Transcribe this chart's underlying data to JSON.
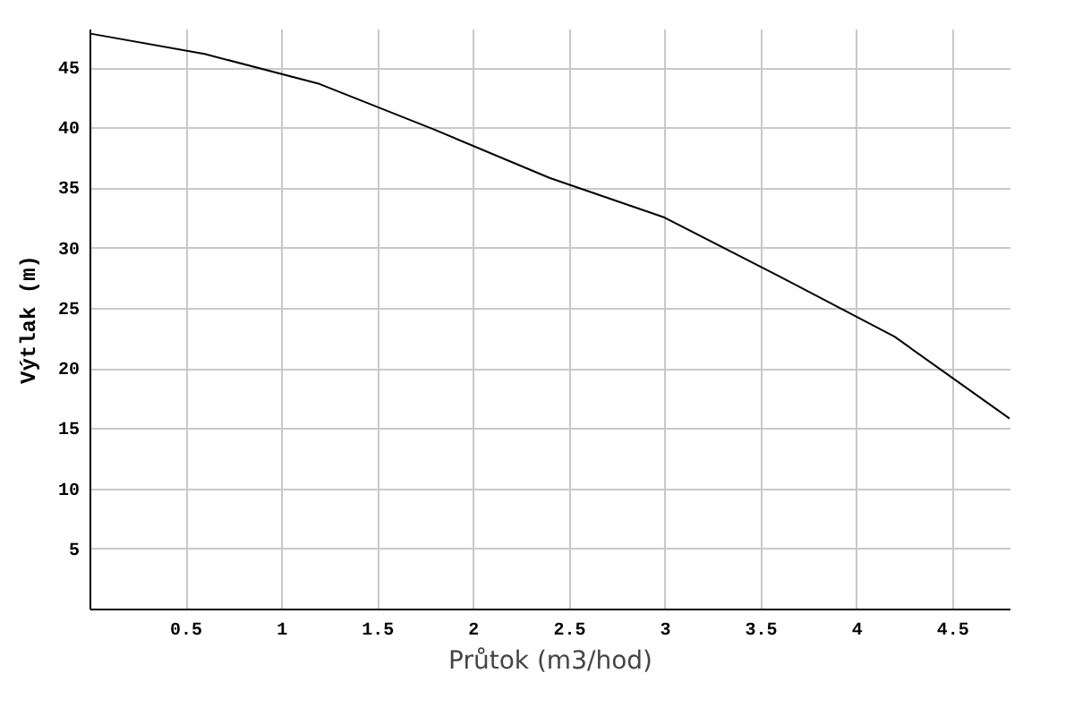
{
  "chart_data": {
    "type": "line",
    "xlabel": "Průtok (m3/hod)",
    "ylabel": "Výtlak (m)",
    "x": [
      0,
      0.6,
      1.2,
      1.8,
      2.4,
      3,
      3.6,
      4.2,
      4.8
    ],
    "series": [
      {
        "color": "#000000",
        "values": [
          47.8,
          46.1,
          43.6,
          39.8,
          35.8,
          32.5,
          27.6,
          22.6,
          15.8
        ]
      }
    ],
    "xlim": [
      0,
      4.8
    ],
    "ylim": [
      0,
      48.2
    ],
    "xticks": [
      0.5,
      1,
      1.5,
      2,
      2.5,
      3,
      3.5,
      4,
      4.5
    ],
    "yticks": [
      5,
      10,
      15,
      20,
      25,
      30,
      35,
      40,
      45
    ],
    "grid": true
  }
}
